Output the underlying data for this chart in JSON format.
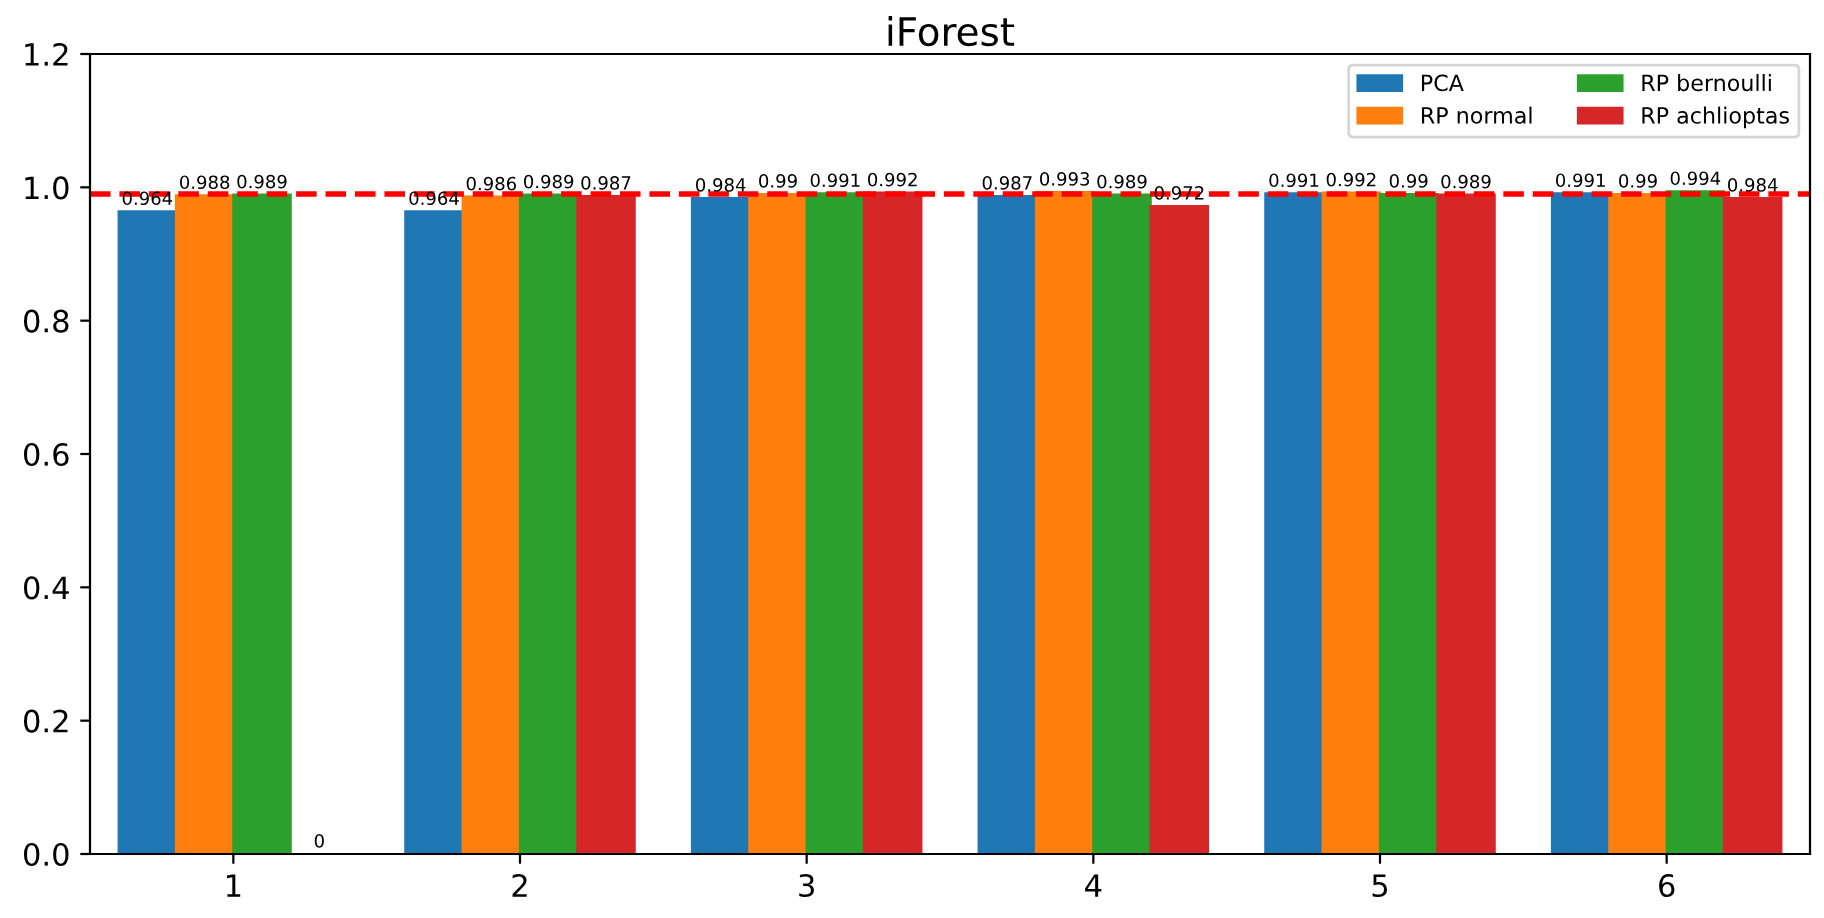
{
  "chart_data": {
    "type": "bar",
    "title": "iForest",
    "categories": [
      "1",
      "2",
      "3",
      "4",
      "5",
      "6"
    ],
    "series": [
      {
        "name": "PCA",
        "color": "#1f77b4",
        "values": [
          0.964,
          0.964,
          0.984,
          0.987,
          0.991,
          0.991
        ]
      },
      {
        "name": "RP normal",
        "color": "#ff7f0e",
        "values": [
          0.988,
          0.986,
          0.99,
          0.993,
          0.992,
          0.99
        ]
      },
      {
        "name": "RP bernoulli",
        "color": "#2ca02c",
        "values": [
          0.989,
          0.989,
          0.991,
          0.989,
          0.99,
          0.994
        ]
      },
      {
        "name": "RP achlioptas",
        "color": "#d62728",
        "values": [
          0,
          0.987,
          0.992,
          0.972,
          0.989,
          0.984
        ]
      }
    ],
    "data_labels": true,
    "ylim": [
      0,
      1.2
    ],
    "yticks": [
      {
        "value": 0,
        "label": "0.0"
      },
      0.2,
      0.4,
      0.6,
      0.8,
      {
        "value": 1,
        "label": "1.0"
      },
      1.2
    ],
    "ref_lines": [
      {
        "axis": "y",
        "value": 0.99,
        "color": "#ff0000",
        "line_style": "dashed"
      }
    ],
    "legend": "top right",
    "grid": false
  }
}
